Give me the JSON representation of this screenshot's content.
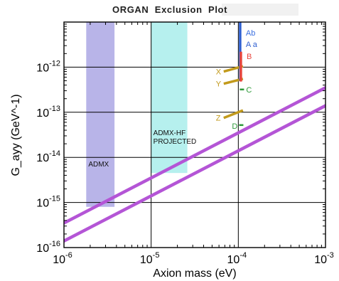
{
  "title": "ORGAN  Exclusion  Plot",
  "chart_data": {
    "type": "line",
    "title": "ORGAN  Exclusion  Plot",
    "xlabel": "Axion mass (eV)",
    "ylabel": "G_ayy (GeV^-1)",
    "x_scale": "log",
    "y_scale": "log",
    "xlim": [
      1e-06,
      0.001
    ],
    "ylim": [
      1e-16,
      1e-11
    ],
    "x_ticks": [
      {
        "value": 1e-06,
        "base": "10",
        "exp": "-6"
      },
      {
        "value": 1e-05,
        "base": "10",
        "exp": "-5"
      },
      {
        "value": 0.0001,
        "base": "10",
        "exp": "-4"
      },
      {
        "value": 0.001,
        "base": "10",
        "exp": "-3"
      }
    ],
    "y_ticks": [
      {
        "value": 1e-12,
        "base": "10",
        "exp": "-12"
      },
      {
        "value": 1e-13,
        "base": "10",
        "exp": "-13"
      },
      {
        "value": 1e-14,
        "base": "10",
        "exp": "-14"
      },
      {
        "value": 1e-15,
        "base": "10",
        "exp": "-15"
      },
      {
        "value": 1e-16,
        "base": "10",
        "exp": "-16"
      }
    ],
    "grid": true,
    "colors": {
      "admx": "#b8b4e8",
      "admx_hf": "#b6f0ee",
      "model_lines": "#b455d6",
      "xyz": "#c29a1c",
      "ab": "#3a6fe0",
      "aa": "#2f5fd0",
      "b": "#e8453c",
      "cd": "#2e9a3a"
    },
    "regions": [
      {
        "name": "ADMX",
        "x": [
          1.8e-06,
          3.8e-06
        ],
        "y": [
          8e-16,
          1e-11
        ],
        "label": "ADMX"
      },
      {
        "name": "ADMX-HF PROJECTED",
        "x": [
          1e-05,
          2.6e-05
        ],
        "y": [
          4.5e-15,
          1e-11
        ],
        "label": "ADMX-HF\nPROJECTED"
      }
    ],
    "series": [
      {
        "x": [
          1e-06,
          0.001
        ],
        "y": [
          3.5e-16,
          3.5e-13
        ]
      },
      {
        "x": [
          1e-06,
          0.001
        ],
        "y": [
          1.4e-16,
          1.4e-13
        ]
      }
    ],
    "segments": [
      {
        "label": "X",
        "x": [
          6.8e-05,
          0.000113
        ],
        "y": [
          8e-13,
          1.05e-12
        ]
      },
      {
        "label": "Y",
        "x": [
          6.8e-05,
          0.000113
        ],
        "y": [
          4.3e-13,
          5.5e-13
        ]
      },
      {
        "label": "Z",
        "x": [
          6.8e-05,
          0.000113
        ],
        "y": [
          7.5e-14,
          1.1e-13
        ]
      }
    ],
    "vertical_bars": [
      {
        "label": "Ab",
        "x": 0.000105,
        "y": [
          1.05e-12,
          1e-11
        ]
      },
      {
        "label": "Aa",
        "x": 0.000105,
        "y": [
          5e-13,
          1e-11
        ]
      },
      {
        "label": "B",
        "x": 0.000107,
        "y": [
          4.8e-13,
          2.2e-12
        ]
      }
    ],
    "points": [
      {
        "label": "C",
        "x": 0.00011,
        "y": 3.2e-13
      },
      {
        "label": "D",
        "x": 0.000108,
        "y": 5.2e-14
      }
    ]
  }
}
